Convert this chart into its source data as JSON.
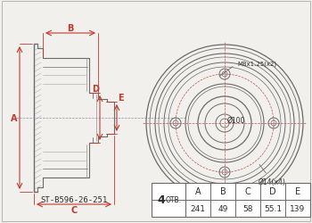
{
  "bg_color": "#f2f0ed",
  "line_color": "#6a6a6a",
  "dim_color": "#c0392b",
  "text_color": "#2c2c2c",
  "part_number": "ST-B596-26-251",
  "annotations": {
    "M8x1.25": "M8x1.25(x2)",
    "D14": "Ø14(x4)",
    "D100": "Ø100"
  },
  "table_headers": [
    "A",
    "B",
    "C",
    "D",
    "E"
  ],
  "table_values": [
    "241",
    "49",
    "58",
    "55.1",
    "139"
  ]
}
